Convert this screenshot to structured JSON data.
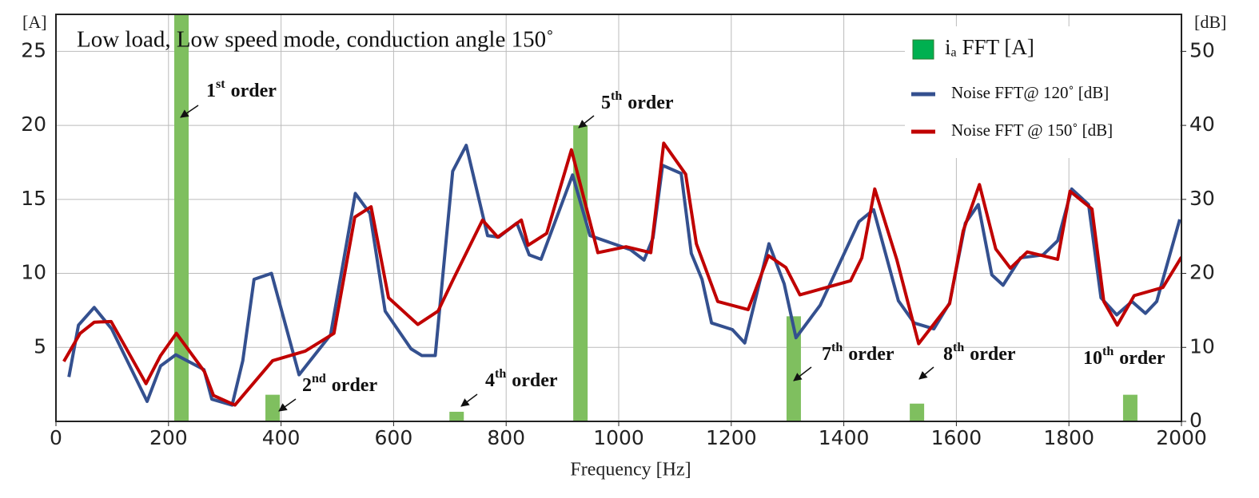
{
  "chart_data": {
    "type": "combo",
    "title": "Low load, Low speed mode, conduction angle 150˚",
    "x_label": "Frequency [Hz]",
    "y_label": "[A]",
    "y2_label": "[dB]",
    "xlim": [
      0,
      2000
    ],
    "xticks": [
      0,
      200,
      400,
      600,
      800,
      1000,
      1200,
      1400,
      1600,
      1800,
      2000
    ],
    "ylim": [
      0,
      27.5
    ],
    "yticks": [
      5,
      10,
      15,
      20,
      25
    ],
    "y2lim": [
      0,
      55
    ],
    "y2ticks": [
      0,
      10,
      20,
      30,
      40,
      50
    ],
    "grid": true,
    "series": [
      {
        "name": "iₐ FFT [A]",
        "type": "bar",
        "color": "#7fbf5f",
        "x": [
          223,
          385,
          712,
          932,
          1311,
          1530,
          1909
        ],
        "values": [
          28,
          1.8,
          0.65,
          20,
          7.1,
          1.2,
          1.8
        ]
      },
      {
        "name": "Noise FFT@ 120˚ [dB]",
        "type": "line",
        "axis": "y2",
        "color": "#34508f",
        "x": [
          23,
          40,
          68,
          99,
          162,
          186,
          213,
          263,
          277,
          313,
          332,
          352,
          383,
          432,
          488,
          532,
          558,
          585,
          631,
          650,
          674,
          705,
          729,
          767,
          787,
          819,
          841,
          862,
          918,
          949,
          1021,
          1045,
          1061,
          1078,
          1111,
          1129,
          1148,
          1165,
          1202,
          1224,
          1267,
          1294,
          1315,
          1358,
          1427,
          1453,
          1497,
          1525,
          1560,
          1588,
          1616,
          1639,
          1663,
          1683,
          1714,
          1754,
          1780,
          1805,
          1835,
          1857,
          1885,
          1912,
          1936,
          1956,
          1997
        ],
        "values": [
          6.0,
          13.0,
          15.4,
          12.5,
          2.7,
          7.5,
          9.0,
          7.0,
          3.0,
          2.2,
          8.2,
          19.2,
          20.0,
          6.3,
          11.7,
          30.8,
          28.1,
          14.9,
          9.8,
          8.9,
          8.9,
          33.8,
          37.3,
          25.1,
          24.9,
          26.8,
          22.5,
          21.9,
          33.3,
          25.1,
          23.2,
          21.8,
          24.8,
          34.6,
          33.5,
          22.7,
          19.2,
          13.3,
          12.4,
          10.6,
          24.0,
          18.6,
          11.3,
          15.7,
          27.0,
          28.6,
          16.3,
          13.3,
          12.5,
          16.0,
          26.8,
          29.3,
          19.8,
          18.4,
          22.1,
          22.5,
          24.4,
          31.4,
          29.3,
          16.7,
          14.4,
          16.2,
          14.6,
          16.2,
          27.3
        ]
      },
      {
        "name": "Noise FFT @ 150˚ [dB]",
        "type": "line",
        "axis": "y2",
        "color": "#c00000",
        "x": [
          14,
          43,
          68,
          98,
          160,
          186,
          214,
          264,
          280,
          318,
          385,
          443,
          494,
          531,
          560,
          591,
          643,
          679,
          706,
          758,
          785,
          827,
          839,
          872,
          916,
          963,
          1013,
          1057,
          1080,
          1119,
          1138,
          1176,
          1230,
          1266,
          1297,
          1322,
          1412,
          1432,
          1455,
          1494,
          1533,
          1588,
          1612,
          1641,
          1670,
          1696,
          1726,
          1780,
          1802,
          1841,
          1862,
          1886,
          1916,
          1967,
          2000
        ],
        "values": [
          8.1,
          11.9,
          13.4,
          13.5,
          5.1,
          8.9,
          11.9,
          6.7,
          3.5,
          2.2,
          8.2,
          9.5,
          11.9,
          27.6,
          29.0,
          16.7,
          13.1,
          14.9,
          19.2,
          27.2,
          24.9,
          27.2,
          23.8,
          25.4,
          36.7,
          22.8,
          23.6,
          22.8,
          37.6,
          33.4,
          24.0,
          16.2,
          15.1,
          22.4,
          20.8,
          17.1,
          19.0,
          22.1,
          31.4,
          21.9,
          10.5,
          15.9,
          25.7,
          32.0,
          23.3,
          20.7,
          22.9,
          21.9,
          31.1,
          28.7,
          16.2,
          13.0,
          17.0,
          18.1,
          22.2
        ]
      }
    ],
    "annotations": [
      {
        "number": "1",
        "suffix": "st",
        "word": "order"
      },
      {
        "number": "2",
        "suffix": "nd",
        "word": "order"
      },
      {
        "number": "4",
        "suffix": "th",
        "word": "order"
      },
      {
        "number": "5",
        "suffix": "th",
        "word": "order"
      },
      {
        "number": "7",
        "suffix": "th",
        "word": "order"
      },
      {
        "number": "8",
        "suffix": "th",
        "word": "order"
      },
      {
        "number": "10",
        "suffix": "th",
        "word": "order"
      }
    ]
  }
}
